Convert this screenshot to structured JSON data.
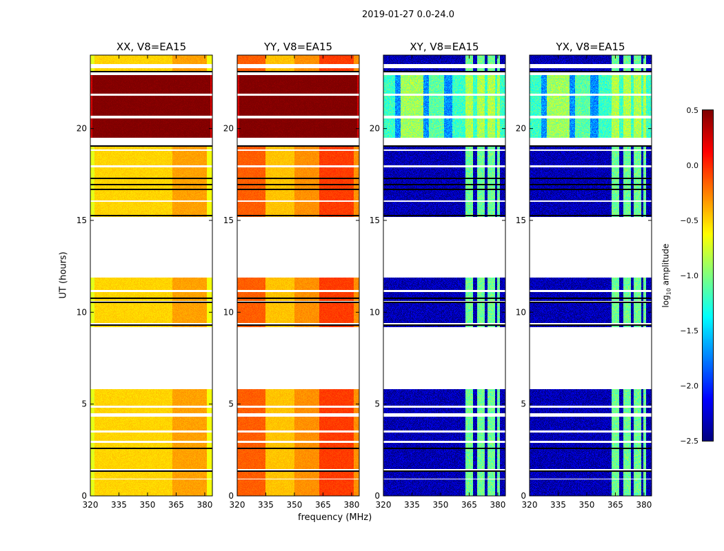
{
  "chart_data": {
    "type": "heatmap",
    "title": "2019-01-27 0.0-24.0",
    "xlabel": "frequency (MHz)",
    "ylabel": "UT (hours)",
    "xlim": [
      320,
      384
    ],
    "ylim": [
      0,
      24
    ],
    "xticks": [
      320,
      335,
      350,
      365,
      380
    ],
    "yticks": [
      0,
      5,
      10,
      15,
      20
    ],
    "colormap": "jet",
    "colorbar": {
      "label_main": "log",
      "label_sub": "10",
      "label_rest": " amplitude",
      "range": [
        -2.5,
        0.5
      ],
      "ticks": [
        "0.5",
        "0.0",
        "−0.5",
        "−1.0",
        "−1.5",
        "−2.0",
        "−2.5"
      ],
      "tick_values": [
        0.5,
        0.0,
        -0.5,
        -1.0,
        -1.5,
        -2.0,
        -2.5
      ]
    },
    "time_segments": [
      [
        0,
        0.9,
        "normal"
      ],
      [
        0.95,
        1.3,
        "normal"
      ],
      [
        1.45,
        2.55,
        "normal"
      ],
      [
        2.6,
        2.9,
        "normal"
      ],
      [
        3.0,
        3.45,
        "normal"
      ],
      [
        3.55,
        4.3,
        "normal"
      ],
      [
        4.5,
        4.8,
        "normal"
      ],
      [
        4.9,
        5.8,
        "normal"
      ],
      [
        9.2,
        9.35,
        "normal"
      ],
      [
        9.4,
        10.5,
        "normal"
      ],
      [
        10.6,
        10.75,
        "normal"
      ],
      [
        10.8,
        11.1,
        "normal"
      ],
      [
        11.2,
        11.9,
        "normal"
      ],
      [
        15.2,
        16.0,
        "normal"
      ],
      [
        16.1,
        17.9,
        "normal"
      ],
      [
        18.0,
        18.8,
        "normal"
      ],
      [
        18.85,
        19.0,
        "normal"
      ],
      [
        19.5,
        20.55,
        "high"
      ],
      [
        20.7,
        21.8,
        "high"
      ],
      [
        21.9,
        22.9,
        "high"
      ],
      [
        23.15,
        23.3,
        "normal"
      ],
      [
        23.5,
        24.0,
        "normal"
      ]
    ],
    "flagged_lines_hours": [
      1.35,
      2.58,
      9.3,
      10.55,
      10.78,
      15.25,
      16.7,
      16.95,
      17.3,
      19.05,
      23.1
    ],
    "rfi_bands_mhz": [
      [
        363,
        367
      ],
      [
        369,
        373
      ],
      [
        374.5,
        378.5
      ],
      [
        379.5,
        381
      ]
    ],
    "panels": [
      {
        "title": "XX, V8=EA15",
        "normal_profile": [
          [
            320,
            322,
            -0.7
          ],
          [
            322,
            363,
            -0.5
          ],
          [
            363,
            381,
            -0.35
          ],
          [
            381,
            384,
            -0.65
          ]
        ],
        "high_value": 0.5,
        "rfi_value": -0.35,
        "noise": 0.05
      },
      {
        "title": "YY, V8=EA15",
        "normal_profile": [
          [
            320,
            335,
            -0.15
          ],
          [
            335,
            350,
            -0.45
          ],
          [
            350,
            363,
            -0.3
          ],
          [
            363,
            381,
            -0.05
          ],
          [
            381,
            384,
            -0.3
          ]
        ],
        "high_value": 0.5,
        "rfi_value": -0.05,
        "noise": 0.05
      },
      {
        "title": "XY, V8=EA15",
        "normal_profile": [
          [
            320,
            384,
            -2.35
          ]
        ],
        "high_profile": [
          [
            320,
            326,
            -1.2
          ],
          [
            326,
            329,
            -1.7
          ],
          [
            329,
            341,
            -0.9
          ],
          [
            341,
            344,
            -1.7
          ],
          [
            344,
            352,
            -1.1
          ],
          [
            352,
            356,
            -1.7
          ],
          [
            356,
            384,
            -1.2
          ]
        ],
        "rfi_value": -1.05,
        "noise": 0.2
      },
      {
        "title": "YX, V8=EA15",
        "normal_profile": [
          [
            320,
            384,
            -2.35
          ]
        ],
        "high_profile": [
          [
            320,
            326,
            -1.2
          ],
          [
            326,
            329,
            -1.7
          ],
          [
            329,
            341,
            -0.9
          ],
          [
            341,
            344,
            -1.7
          ],
          [
            344,
            352,
            -1.1
          ],
          [
            352,
            356,
            -1.7
          ],
          [
            356,
            384,
            -1.2
          ]
        ],
        "rfi_value": -1.05,
        "noise": 0.2
      }
    ]
  }
}
